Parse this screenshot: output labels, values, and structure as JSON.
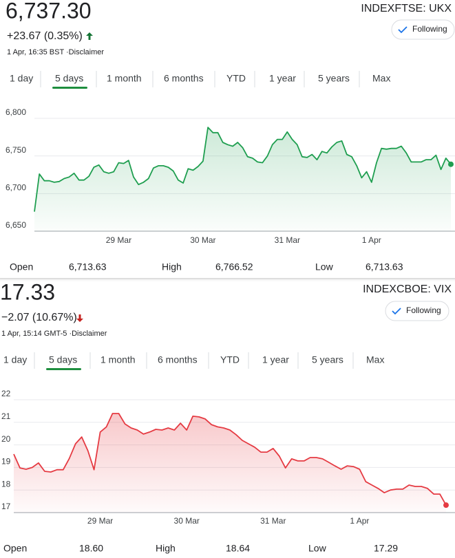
{
  "widgets": [
    {
      "price": "6,737.30",
      "ticker": "INDEXFTSE: UKX",
      "change": "+23.67 (0.35%)",
      "button": "Following",
      "timestamp": "1 Apr, 16:35 BST ·Disclaimer",
      "tabs": [
        "1 day",
        "5 days",
        "1 month",
        "6 months",
        "YTD",
        "1 year",
        "5 years",
        "Max"
      ],
      "active_tab": 1,
      "stats": [
        {
          "label": "Open",
          "value": "6,713.63"
        },
        {
          "label": "High",
          "value": "6,766.52"
        },
        {
          "label": "Low",
          "value": "6,713.63"
        }
      ]
    },
    {
      "price": "17.33",
      "ticker": "INDEXCBOE: VIX",
      "change": "−2.07 (10.67%)",
      "button": "Following",
      "timestamp": "1 Apr, 15:14 GMT-5 ·Disclaimer",
      "tabs": [
        "1 day",
        "5 days",
        "1 month",
        "6 months",
        "YTD",
        "1 year",
        "5 years",
        "Max"
      ],
      "active_tab": 1,
      "stats": [
        {
          "label": "Open",
          "value": "18.60"
        },
        {
          "label": "High",
          "value": "18.64"
        },
        {
          "label": "Low",
          "value": "17.29"
        }
      ]
    }
  ],
  "chart_data": [
    {
      "type": "line",
      "categories": [
        null,
        null,
        null,
        null,
        null,
        null,
        null,
        null,
        null,
        null,
        null,
        null,
        null,
        null,
        null,
        null,
        null,
        "29 Mar",
        null,
        null,
        null,
        null,
        null,
        null,
        null,
        null,
        null,
        null,
        null,
        null,
        null,
        null,
        null,
        null,
        "30 Mar",
        null,
        null,
        null,
        null,
        null,
        null,
        null,
        null,
        null,
        null,
        null,
        null,
        null,
        null,
        null,
        null,
        "31 Mar",
        null,
        null,
        null,
        null,
        null,
        null,
        null,
        null,
        null,
        null,
        null,
        null,
        null,
        null,
        null,
        null,
        "1 Apr",
        null,
        null,
        null,
        null,
        null,
        null,
        null,
        null,
        null,
        null,
        null,
        null,
        null,
        null,
        null,
        null
      ],
      "series": [
        {
          "color": "#1e9e4f",
          "values": [
            6676,
            6726,
            6717,
            6717,
            6715,
            6716,
            6720,
            6722,
            6727,
            6718,
            6718,
            6723,
            6735,
            6738,
            6729,
            6727,
            6729,
            6741,
            6740,
            6744,
            6722,
            6712,
            6715,
            6720,
            6734,
            6737,
            6737,
            6735,
            6730,
            6718,
            6714,
            6733,
            6731,
            6736,
            6743,
            6788,
            6781,
            6781,
            6768,
            6765,
            6763,
            6768,
            6761,
            6749,
            6747,
            6742,
            6741,
            6750,
            6765,
            6772,
            6772,
            6782,
            6772,
            6765,
            6749,
            6748,
            6752,
            6745,
            6756,
            6754,
            6762,
            6768,
            6770,
            6752,
            6749,
            6737,
            6721,
            6729,
            6715,
            6741,
            6760,
            6759,
            6760,
            6760,
            6763,
            6754,
            6742,
            6742,
            6742,
            6745,
            6745,
            6751,
            6732,
            6747,
            6739
          ]
        }
      ],
      "ylim": [
        6650,
        6800
      ],
      "yticks": [
        {
          "value": 6650,
          "label": "6,650"
        },
        {
          "value": 6700,
          "label": "6,700"
        },
        {
          "value": 6750,
          "label": "6,750"
        },
        {
          "value": 6800,
          "label": "6,800"
        }
      ],
      "grid": true
    },
    {
      "type": "line",
      "categories": [
        null,
        null,
        null,
        null,
        null,
        null,
        null,
        null,
        null,
        null,
        null,
        null,
        null,
        null,
        "29 Mar",
        null,
        null,
        null,
        null,
        null,
        null,
        null,
        null,
        null,
        null,
        null,
        null,
        null,
        "30 Mar",
        null,
        null,
        null,
        null,
        null,
        null,
        null,
        null,
        null,
        null,
        null,
        null,
        null,
        "31 Mar",
        null,
        null,
        null,
        null,
        null,
        null,
        null,
        null,
        null,
        null,
        null,
        null,
        null,
        "1 Apr",
        null,
        null,
        null,
        null,
        null,
        null,
        null,
        null,
        null,
        null,
        null,
        null,
        null,
        null
      ],
      "series": [
        {
          "color": "#e53a42",
          "values": [
            19.59,
            18.98,
            18.92,
            19.0,
            19.2,
            18.83,
            18.8,
            18.9,
            18.9,
            19.4,
            20.05,
            20.35,
            19.74,
            18.9,
            20.57,
            20.8,
            21.39,
            21.39,
            20.93,
            20.75,
            20.66,
            20.48,
            20.57,
            20.69,
            20.66,
            20.75,
            20.66,
            20.96,
            20.66,
            21.27,
            21.24,
            21.15,
            20.9,
            20.8,
            20.75,
            20.66,
            20.45,
            20.2,
            20.05,
            19.9,
            19.68,
            19.68,
            19.84,
            19.5,
            18.98,
            19.38,
            19.29,
            19.29,
            19.44,
            19.44,
            19.38,
            19.23,
            19.07,
            18.92,
            19.07,
            19.04,
            18.92,
            18.37,
            18.22,
            18.07,
            17.88,
            18.0,
            18.04,
            18.04,
            18.22,
            18.16,
            18.16,
            18.07,
            17.82,
            17.82,
            17.33
          ]
        }
      ],
      "ylim": [
        17,
        22
      ],
      "yticks": [
        17,
        18,
        19,
        20,
        21,
        22
      ],
      "grid": true
    }
  ]
}
